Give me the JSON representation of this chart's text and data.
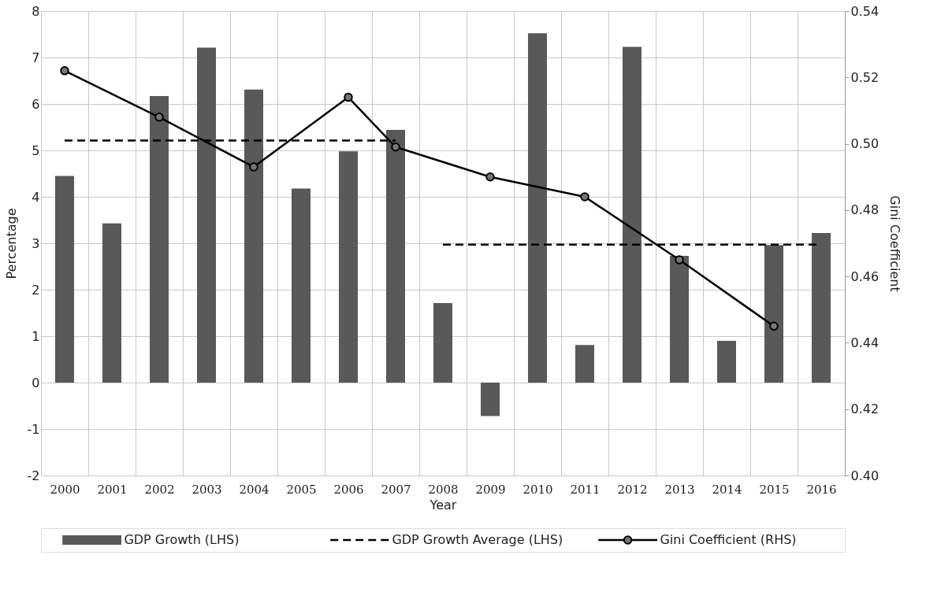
{
  "chart_data": {
    "type": "bar",
    "xlabel": "Year",
    "ylabel": "Percentage",
    "y2label": "Gini Coefficient",
    "categories": [
      "2000",
      "2001",
      "2002",
      "2003",
      "2004",
      "2005",
      "2006",
      "2007",
      "2008",
      "2009",
      "2010",
      "2011",
      "2012",
      "2013",
      "2014",
      "2015",
      "2016"
    ],
    "series": [
      {
        "name": "GDP Growth (LHS)",
        "color": "#595959",
        "values": [
          4.45,
          3.43,
          6.17,
          7.21,
          6.31,
          4.18,
          4.98,
          5.44,
          1.71,
          -0.72,
          7.52,
          0.81,
          7.23,
          2.73,
          0.9,
          2.96,
          3.22
        ]
      },
      {
        "name": "GDP Growth Average (LHS)",
        "type": "line",
        "line_style": "dashed",
        "marker": "none",
        "color": "#000000",
        "values": [
          5.21,
          5.21,
          5.21,
          5.21,
          5.21,
          5.21,
          5.21,
          5.21,
          null,
          null,
          null,
          null,
          null,
          null,
          null,
          null,
          null
        ]
      },
      {
        "type": "line",
        "line_style": "dashed",
        "marker": "none",
        "color": "#000000",
        "values": [
          null,
          null,
          null,
          null,
          null,
          null,
          null,
          null,
          2.97,
          2.97,
          2.97,
          2.97,
          2.97,
          2.97,
          2.97,
          2.97,
          2.97
        ]
      },
      {
        "name": "Gini Coefficient (RHS)",
        "type": "line",
        "line_style": "solid",
        "marker": "circle",
        "axis": "y2",
        "color": "#000000",
        "values": [
          0.522,
          null,
          0.508,
          null,
          0.493,
          null,
          0.514,
          0.499,
          null,
          0.49,
          null,
          0.484,
          null,
          0.465,
          null,
          0.445,
          null
        ]
      }
    ],
    "ylim": [
      -2,
      8
    ],
    "yticks": [
      -2,
      -1,
      0,
      1,
      2,
      3,
      4,
      5,
      6,
      7,
      8
    ],
    "y2lim": [
      0.4,
      0.54
    ],
    "y2ticks": [
      {
        "value": 0.4,
        "label": "0.40"
      },
      {
        "value": 0.42,
        "label": "0.42"
      },
      {
        "value": 0.44,
        "label": "0.44"
      },
      {
        "value": 0.46,
        "label": "0.46"
      },
      {
        "value": 0.48,
        "label": "0.48"
      },
      {
        "value": 0.5,
        "label": "0.50"
      },
      {
        "value": 0.52,
        "label": "0.52"
      },
      {
        "value": 0.54,
        "label": "0.54"
      }
    ],
    "grid": true,
    "legend": "bottom"
  }
}
